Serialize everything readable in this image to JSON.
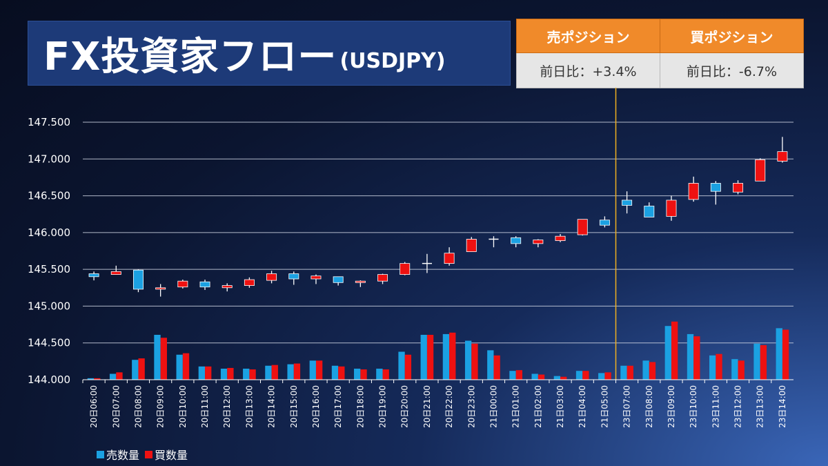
{
  "header": {
    "title": "FX投資家フロー",
    "subtitle": "(USDJPY)"
  },
  "positions": {
    "sell_header": "売ポジション",
    "buy_header": "買ポジション",
    "sell_value": "前日比：+3.4%",
    "buy_value": "前日比：-6.7%"
  },
  "colors": {
    "sell": "#1ba1e2",
    "buy": "#ee1111",
    "marker_line": "#f0b020",
    "grid": "#d0d6e4"
  },
  "chart_data": {
    "type": "candlestick+bar",
    "ylim": [
      144.0,
      147.5
    ],
    "yticks": [
      "144.000",
      "144.500",
      "145.000",
      "145.500",
      "146.000",
      "146.500",
      "147.000",
      "147.500"
    ],
    "categories": [
      "20日06:00",
      "20日07:00",
      "20日08:00",
      "20日09:00",
      "20日10:00",
      "20日11:00",
      "20日12:00",
      "20日13:00",
      "20日14:00",
      "20日15:00",
      "20日16:00",
      "20日17:00",
      "20日18:00",
      "20日19:00",
      "20日20:00",
      "20日21:00",
      "20日22:00",
      "20日23:00",
      "21日00:00",
      "21日01:00",
      "21日02:00",
      "21日03:00",
      "21日04:00",
      "21日05:00",
      "23日07:00",
      "23日08:00",
      "23日09:00",
      "23日10:00",
      "23日11:00",
      "23日12:00",
      "23日13:00",
      "23日14:00"
    ],
    "candles": [
      {
        "o": 145.44,
        "h": 145.47,
        "l": 145.35,
        "c": 145.4
      },
      {
        "o": 145.43,
        "h": 145.55,
        "l": 145.43,
        "c": 145.47
      },
      {
        "o": 145.49,
        "h": 145.5,
        "l": 145.19,
        "c": 145.23
      },
      {
        "o": 145.23,
        "h": 145.3,
        "l": 145.13,
        "c": 145.25
      },
      {
        "o": 145.26,
        "h": 145.36,
        "l": 145.24,
        "c": 145.34
      },
      {
        "o": 145.33,
        "h": 145.36,
        "l": 145.22,
        "c": 145.26
      },
      {
        "o": 145.25,
        "h": 145.31,
        "l": 145.2,
        "c": 145.28
      },
      {
        "o": 145.28,
        "h": 145.39,
        "l": 145.25,
        "c": 145.36
      },
      {
        "o": 145.35,
        "h": 145.48,
        "l": 145.31,
        "c": 145.44
      },
      {
        "o": 145.44,
        "h": 145.47,
        "l": 145.29,
        "c": 145.37
      },
      {
        "o": 145.37,
        "h": 145.43,
        "l": 145.3,
        "c": 145.41
      },
      {
        "o": 145.4,
        "h": 145.4,
        "l": 145.28,
        "c": 145.32
      },
      {
        "o": 145.32,
        "h": 145.35,
        "l": 145.26,
        "c": 145.34
      },
      {
        "o": 145.34,
        "h": 145.44,
        "l": 145.3,
        "c": 145.43
      },
      {
        "o": 145.43,
        "h": 145.6,
        "l": 145.42,
        "c": 145.58
      },
      {
        "o": 145.58,
        "h": 145.71,
        "l": 145.45,
        "c": 145.58
      },
      {
        "o": 145.58,
        "h": 145.8,
        "l": 145.55,
        "c": 145.72
      },
      {
        "o": 145.74,
        "h": 145.94,
        "l": 145.74,
        "c": 145.91
      },
      {
        "o": 145.91,
        "h": 145.95,
        "l": 145.8,
        "c": 145.91
      },
      {
        "o": 145.93,
        "h": 145.95,
        "l": 145.8,
        "c": 145.85
      },
      {
        "o": 145.85,
        "h": 145.91,
        "l": 145.8,
        "c": 145.9
      },
      {
        "o": 145.89,
        "h": 145.98,
        "l": 145.87,
        "c": 145.95
      },
      {
        "o": 145.97,
        "h": 146.18,
        "l": 145.96,
        "c": 146.18
      },
      {
        "o": 146.17,
        "h": 146.22,
        "l": 146.07,
        "c": 146.1
      },
      {
        "o": 146.44,
        "h": 146.56,
        "l": 146.26,
        "c": 146.37
      },
      {
        "o": 146.36,
        "h": 146.41,
        "l": 146.22,
        "c": 146.21
      },
      {
        "o": 146.22,
        "h": 146.5,
        "l": 146.16,
        "c": 146.44
      },
      {
        "o": 146.45,
        "h": 146.76,
        "l": 146.42,
        "c": 146.67
      },
      {
        "o": 146.67,
        "h": 146.7,
        "l": 146.38,
        "c": 146.56
      },
      {
        "o": 146.55,
        "h": 146.71,
        "l": 146.52,
        "c": 146.67
      },
      {
        "o": 146.7,
        "h": 147.01,
        "l": 146.7,
        "c": 146.99
      },
      {
        "o": 146.97,
        "h": 147.3,
        "l": 146.95,
        "c": 147.1
      }
    ],
    "series": [
      {
        "name": "売数量",
        "values": [
          144.02,
          144.08,
          144.27,
          144.61,
          144.34,
          144.18,
          144.15,
          144.15,
          144.19,
          144.21,
          144.26,
          144.19,
          144.15,
          144.15,
          144.38,
          144.61,
          144.62,
          144.53,
          144.4,
          144.12,
          144.08,
          144.05,
          144.12,
          144.09,
          144.19,
          144.26,
          144.73,
          144.62,
          144.33,
          144.28,
          144.49,
          144.7
        ]
      },
      {
        "name": "買数量",
        "values": [
          144.02,
          144.1,
          144.29,
          144.57,
          144.36,
          144.18,
          144.16,
          144.14,
          144.2,
          144.22,
          144.26,
          144.18,
          144.14,
          144.14,
          144.34,
          144.61,
          144.64,
          144.49,
          144.33,
          144.13,
          144.07,
          144.04,
          144.12,
          144.1,
          144.19,
          144.24,
          144.79,
          144.59,
          144.35,
          144.26,
          144.47,
          144.68
        ]
      }
    ],
    "marker_after_index": 23,
    "legend_position": "bottom-left"
  }
}
